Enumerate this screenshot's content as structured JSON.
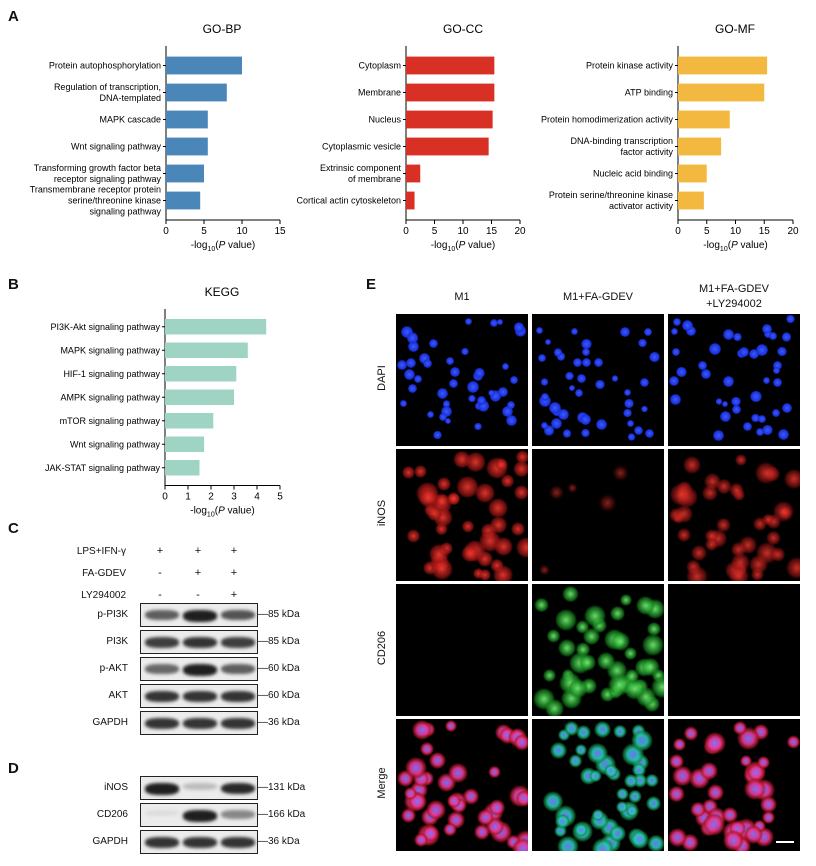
{
  "panels": {
    "A": "A",
    "B": "B",
    "C": "C",
    "D": "D",
    "E": "E"
  },
  "colors": {
    "bp": "#4a86b8",
    "cc": "#d93026",
    "mf": "#f2b840",
    "kegg": "#9fd4c4"
  },
  "chart_data": [
    {
      "type": "bar",
      "orientation": "horizontal",
      "title": "GO-BP",
      "categories": [
        "Protein autophosphorylation",
        "Regulation of transcription, DNA-templated",
        "MAPK cascade",
        "Wnt signaling pathway",
        "Transforming growth factor beta receptor signaling pathway",
        "Transmembrane receptor protein serine/threonine kinase signaling pathway"
      ],
      "label_lines": [
        [
          "Protein autophosphorylation"
        ],
        [
          "Regulation of transcription,",
          "DNA-templated"
        ],
        [
          "MAPK cascade"
        ],
        [
          "Wnt signaling pathway"
        ],
        [
          "Transforming growth factor beta",
          "receptor signaling pathway"
        ],
        [
          "Transmembrane receptor protein",
          "serine/threonine kinase",
          "signaling pathway"
        ]
      ],
      "values": [
        10,
        8,
        5.5,
        5.5,
        5,
        4.5
      ],
      "xlabel": "-log10(P value)",
      "xlim": [
        0,
        15
      ],
      "xticks": [
        0,
        5,
        10,
        15
      ]
    },
    {
      "type": "bar",
      "orientation": "horizontal",
      "title": "GO-CC",
      "categories": [
        "Cytoplasm",
        "Membrane",
        "Nucleus",
        "Cytoplasmic vesicle",
        "Extrinsic component of membrane",
        "Cortical actin cytoskeleton"
      ],
      "label_lines": [
        [
          "Cytoplasm"
        ],
        [
          "Membrane"
        ],
        [
          "Nucleus"
        ],
        [
          "Cytoplasmic vesicle"
        ],
        [
          "Extrinsic component",
          "of membrane"
        ],
        [
          "Cortical actin cytoskeleton"
        ]
      ],
      "values": [
        15.5,
        15.5,
        15.2,
        14.5,
        2.5,
        1.5
      ],
      "xlabel": "-log10(P value)",
      "xlim": [
        0,
        20
      ],
      "xticks": [
        0,
        5,
        10,
        15,
        20
      ]
    },
    {
      "type": "bar",
      "orientation": "horizontal",
      "title": "GO-MF",
      "categories": [
        "Protein kinase activity",
        "ATP binding",
        "Protein homodimerization activity",
        "DNA-binding transcription factor activity",
        "Nucleic acid binding",
        "Protein serine/threonine kinase activator activity"
      ],
      "label_lines": [
        [
          "Protein kinase activity"
        ],
        [
          "ATP binding"
        ],
        [
          "Protein homodimerization activity"
        ],
        [
          "DNA-binding transcription",
          "factor activity"
        ],
        [
          "Nucleic acid binding"
        ],
        [
          "Protein serine/threonine kinase",
          "activator activity"
        ]
      ],
      "values": [
        15.5,
        15,
        9,
        7.5,
        5,
        4.5
      ],
      "xlabel": "-log10(P value)",
      "xlim": [
        0,
        20
      ],
      "xticks": [
        0,
        5,
        10,
        15,
        20
      ]
    },
    {
      "type": "bar",
      "orientation": "horizontal",
      "title": "KEGG",
      "categories": [
        "PI3K-Akt signaling pathway",
        "MAPK signaling pathway",
        "HIF-1 signaling pathway",
        "AMPK signaling pathway",
        "mTOR signaling pathway",
        "Wnt signaling pathway",
        "JAK-STAT signaling pathway"
      ],
      "label_lines": [
        [
          "PI3K-Akt signaling pathway"
        ],
        [
          "MAPK signaling pathway"
        ],
        [
          "HIF-1 signaling pathway"
        ],
        [
          "AMPK signaling pathway"
        ],
        [
          "mTOR signaling pathway"
        ],
        [
          "Wnt signaling pathway"
        ],
        [
          "JAK-STAT signaling pathway"
        ]
      ],
      "values": [
        4.4,
        3.6,
        3.1,
        3.0,
        2.1,
        1.7,
        1.5
      ],
      "xlabel": "-log10(P value)",
      "xlim": [
        0,
        5
      ],
      "xticks": [
        0,
        1,
        2,
        3,
        4,
        5
      ]
    }
  ],
  "panelC": {
    "conditions": [
      {
        "label": "LPS+IFN-γ",
        "signs": [
          "+",
          "+",
          "+"
        ]
      },
      {
        "label": "FA-GDEV",
        "signs": [
          "-",
          "+",
          "+"
        ]
      },
      {
        "label": "LY294002",
        "signs": [
          "-",
          "-",
          "+"
        ]
      }
    ],
    "blots": [
      {
        "label": "p-PI3K",
        "kda": "85 kDa",
        "intensity": [
          0.65,
          0.95,
          0.7
        ]
      },
      {
        "label": "PI3K",
        "kda": "85 kDa",
        "intensity": [
          0.8,
          0.85,
          0.8
        ]
      },
      {
        "label": "p-AKT",
        "kda": "60 kDa",
        "intensity": [
          0.6,
          0.95,
          0.65
        ]
      },
      {
        "label": "AKT",
        "kda": "60 kDa",
        "intensity": [
          0.85,
          0.85,
          0.85
        ]
      },
      {
        "label": "GAPDH",
        "kda": "36 kDa",
        "intensity": [
          0.85,
          0.85,
          0.85
        ]
      }
    ]
  },
  "panelD": {
    "blots": [
      {
        "label": "iNOS",
        "kda": "131 kDa",
        "intensity": [
          0.95,
          0.2,
          0.9
        ]
      },
      {
        "label": "CD206",
        "kda": "166 kDa",
        "intensity": [
          0.05,
          0.95,
          0.45
        ]
      },
      {
        "label": "GAPDH",
        "kda": "36 kDa",
        "intensity": [
          0.85,
          0.85,
          0.85
        ]
      }
    ]
  },
  "panelE": {
    "columns": [
      "M1",
      "M1+FA-GDEV",
      "M1+FA-GDEV\n+LY294002"
    ],
    "rows": [
      "DAPI",
      "iNOS",
      "CD206",
      "Merge"
    ],
    "signal": [
      [
        0.9,
        0.9,
        0.9
      ],
      [
        0.9,
        0.1,
        0.7
      ],
      [
        0,
        0.9,
        0
      ],
      [
        0.9,
        0.9,
        0.8
      ]
    ]
  }
}
